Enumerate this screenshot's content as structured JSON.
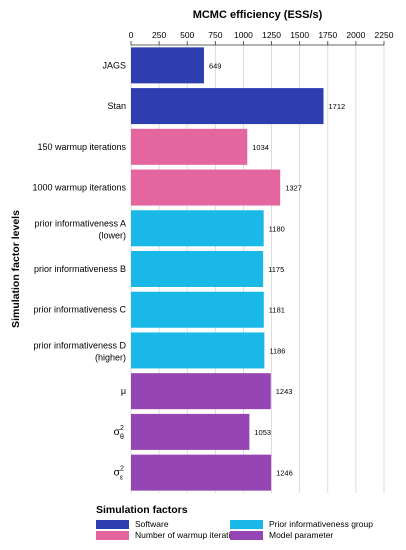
{
  "chart_data": {
    "type": "bar",
    "orientation": "horizontal",
    "title": "MCMC efficiency (ESS/s)",
    "xlabel": "MCMC efficiency (ESS/s)",
    "ylabel": "Simulation factor levels",
    "xlim": [
      0,
      2250
    ],
    "xticks": [
      0,
      250,
      500,
      750,
      1000,
      1250,
      1500,
      1750,
      2000,
      2250
    ],
    "xtick_labels": [
      "0",
      "250",
      "500",
      "750",
      "1000",
      "1250",
      "1500",
      "1750",
      "2000",
      "2250"
    ],
    "grid": "vertical",
    "categories": [
      {
        "line1": "JAGS",
        "line2": ""
      },
      {
        "line1": "Stan",
        "line2": ""
      },
      {
        "line1": "150 warmup iterations",
        "line2": ""
      },
      {
        "line1": "1000 warmup iterations",
        "line2": ""
      },
      {
        "line1": "prior informativeness A",
        "line2": "(lower)"
      },
      {
        "line1": "prior informativeness B",
        "line2": ""
      },
      {
        "line1": "prior informativeness C",
        "line2": ""
      },
      {
        "line1": "prior informativeness D",
        "line2": "(higher)"
      },
      {
        "line1": "μ",
        "line2": ""
      },
      {
        "line1": "σ",
        "line2": "",
        "sup": "2",
        "sub": "θ"
      },
      {
        "line1": "σ",
        "line2": "",
        "sup": "2",
        "sub": "ε"
      }
    ],
    "values": [
      649,
      1712,
      1034,
      1327,
      1180,
      1175,
      1181,
      1186,
      1243,
      1053,
      1246
    ],
    "data_labels": [
      "649",
      "1712",
      "1034",
      "1327",
      "1180",
      "1175",
      "1181",
      "1186",
      "1243",
      "1053",
      "1246"
    ],
    "groups": [
      "software",
      "software",
      "warmup",
      "warmup",
      "prior",
      "prior",
      "prior",
      "prior",
      "model",
      "model",
      "model"
    ],
    "legend": {
      "title": "Simulation factors",
      "placement": "bottom",
      "items": [
        {
          "key": "software",
          "label": "Software",
          "color": "#2e3eb0"
        },
        {
          "key": "prior",
          "label": "Prior informativeness group",
          "color": "#1ab8e6"
        },
        {
          "key": "warmup",
          "label": "Number of warmup iterations",
          "color": "#e5659f"
        },
        {
          "key": "model",
          "label": "Model parameter",
          "color": "#9646b4"
        }
      ]
    }
  }
}
